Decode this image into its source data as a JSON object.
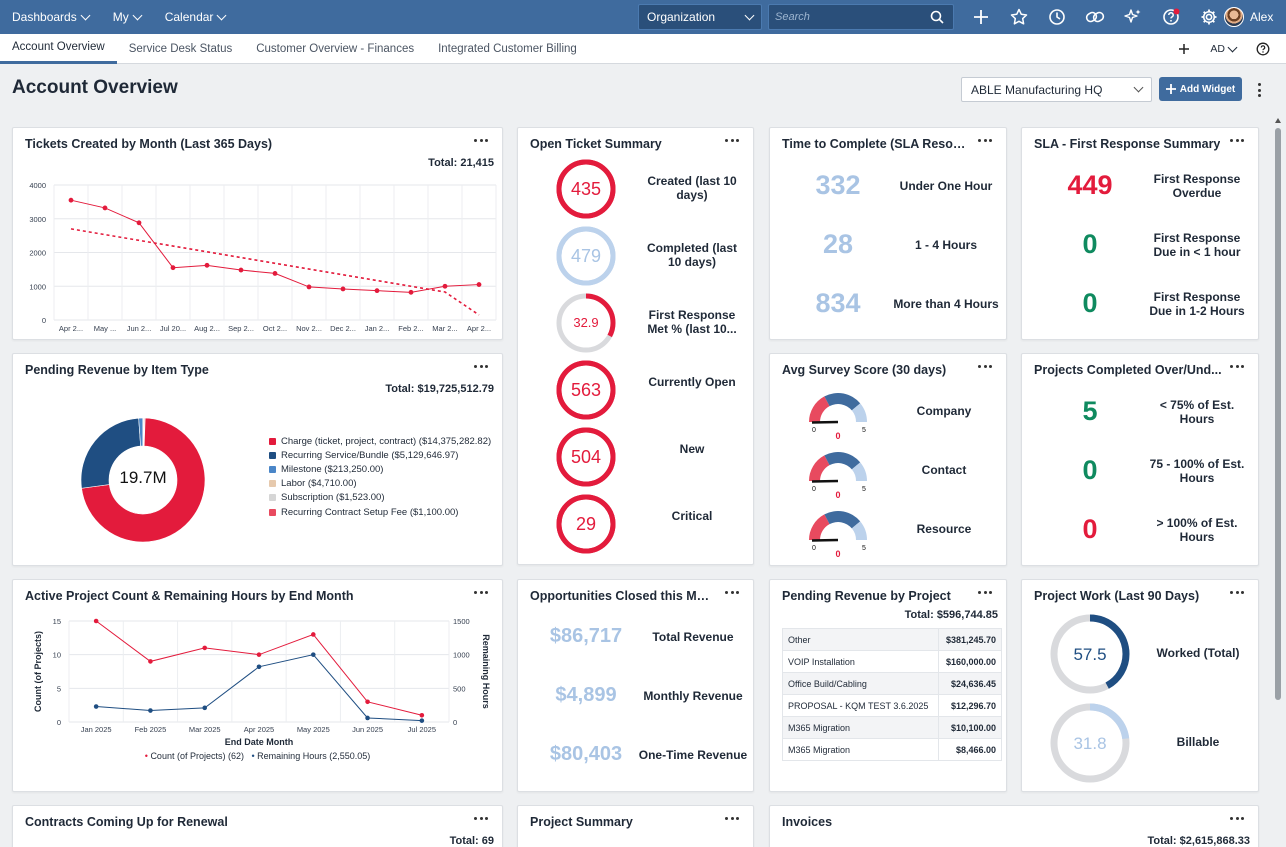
{
  "topbar": {
    "nav": [
      {
        "id": "dashboards",
        "label": "Dashboards"
      },
      {
        "id": "my",
        "label": "My"
      },
      {
        "id": "calendar",
        "label": "Calendar"
      }
    ],
    "organization": "Organization",
    "search_placeholder": "Search",
    "icons": [
      "plus-icon",
      "star-icon",
      "clock-icon",
      "link-icon",
      "sparkle-icon",
      "help-icon",
      "gear-icon"
    ],
    "user_name": "Alex"
  },
  "tabs": [
    {
      "label": "Account Overview",
      "active": true
    },
    {
      "label": "Service Desk Status",
      "active": false
    },
    {
      "label": "Customer Overview - Finances",
      "active": false
    },
    {
      "label": "Integrated Customer Billing",
      "active": false
    }
  ],
  "tabbar": {
    "user_initials": "AD"
  },
  "page": {
    "title": "Account Overview",
    "account_select": "ABLE Manufacturing HQ",
    "add_widget_label": "Add Widget"
  },
  "colors": {
    "accent": "#3f6b9e",
    "red": "#e31b3c",
    "green": "#0f8a5f",
    "light_blue": "#a9c4e4",
    "navy": "#1f4e82"
  },
  "widgets": {
    "tickets_by_month": {
      "title": "Tickets Created by Month (Last 365 Days)",
      "total": "Total: 21,415",
      "chart_data": {
        "type": "line",
        "x": [
          "Apr 2...",
          "May ...",
          "Jun 2...",
          "Jul 20...",
          "Aug 2...",
          "Sep 2...",
          "Oct 2...",
          "Nov 2...",
          "Dec 2...",
          "Jan 2...",
          "Feb 2...",
          "Mar 2...",
          "Apr 2..."
        ],
        "series": [
          {
            "values": [
              3550,
              3320,
              2880,
              1550,
              1620,
              1480,
              1380,
              980,
              920,
              870,
              820,
              1000,
              1050
            ]
          }
        ],
        "trend": [
          2700,
          2530,
          2360,
          2190,
          2020,
          1850,
          1680,
          1510,
          1340,
          1170,
          1000,
          830,
          150
        ],
        "yticks": [
          "0",
          "1000",
          "2000",
          "3000",
          "4000"
        ],
        "ylim": [
          0,
          4000
        ]
      }
    },
    "open_ticket_summary": {
      "title": "Open Ticket Summary",
      "rows": [
        {
          "value": "435",
          "label": "Created (last 10 days)",
          "style": "red",
          "fill": 1
        },
        {
          "value": "479",
          "label": "Completed (last 10 days)",
          "style": "lightblue",
          "fill": 1
        },
        {
          "value": "32.9",
          "label": "First Response Met % (last 10...",
          "style": "partial",
          "fill": 0.329
        },
        {
          "value": "563",
          "label": "Currently Open",
          "style": "red",
          "fill": 1
        },
        {
          "value": "504",
          "label": "New",
          "style": "red",
          "fill": 1
        },
        {
          "value": "29",
          "label": "Critical",
          "style": "red",
          "fill": 1
        }
      ]
    },
    "time_to_complete": {
      "title": "Time to Complete (SLA Resolu...",
      "rows": [
        {
          "value": "332",
          "label": "Under One Hour"
        },
        {
          "value": "28",
          "label": "1 - 4 Hours"
        },
        {
          "value": "834",
          "label": "More than 4 Hours"
        }
      ]
    },
    "sla_first_response": {
      "title": "SLA - First Response Summary",
      "rows": [
        {
          "value": "449",
          "label": "First Response Overdue",
          "color": "#e31b3c"
        },
        {
          "value": "0",
          "label": "First Response Due in < 1 hour",
          "color": "#0f8a5f"
        },
        {
          "value": "0",
          "label": "First Response Due in 1-2 Hours",
          "color": "#0f8a5f"
        }
      ]
    },
    "pending_revenue_item": {
      "title": "Pending Revenue by Item Type",
      "total": "Total: $19,725,512.79",
      "center": "19.7M",
      "chart_data": {
        "type": "pie",
        "categories": [
          "Charge (ticket, project, contract) ($14,375,282.82)",
          "Recurring Service/Bundle ($5,129,646.97)",
          "Milestone ($213,250.00)",
          "Labor ($4,710.00)",
          "Subscription ($1,523.00)",
          "Recurring Contract Setup Fee ($1,100.00)"
        ],
        "values": [
          14375282.82,
          5129646.97,
          213250.0,
          4710.0,
          1523.0,
          1100.0
        ],
        "colors": [
          "#e31b3c",
          "#1f4e82",
          "#4a86c8",
          "#e6c9ad",
          "#d6d6d6",
          "#e84a5f"
        ]
      }
    },
    "avg_survey": {
      "title": "Avg Survey Score (30 days)",
      "min": "0",
      "max": "5",
      "rows": [
        {
          "label": "Company",
          "value": "0",
          "score": 0
        },
        {
          "label": "Contact",
          "value": "0",
          "score": 0
        },
        {
          "label": "Resource",
          "value": "0",
          "score": 0
        }
      ]
    },
    "projects_completed": {
      "title": "Projects Completed Over/Und...",
      "rows": [
        {
          "value": "5",
          "label": "< 75% of Est. Hours",
          "color": "#0f8a5f"
        },
        {
          "value": "0",
          "label": "75 - 100% of Est. Hours",
          "color": "#0f8a5f"
        },
        {
          "value": "0",
          "label": "> 100% of Est. Hours",
          "color": "#e31b3c"
        }
      ]
    },
    "active_projects": {
      "title": "Active Project Count & Remaining Hours by End Month",
      "chart_data": {
        "type": "line",
        "x": [
          "Jan 2025",
          "Feb 2025",
          "Mar 2025",
          "Apr 2025",
          "May 2025",
          "Jun 2025",
          "Jul 2025"
        ],
        "series": [
          {
            "name": "Count (of Projects) (62)",
            "axis": "left",
            "color": "#e31b3c",
            "values": [
              15,
              9,
              11,
              10,
              13,
              3,
              1
            ]
          },
          {
            "name": "Remaining Hours (2,550.05)",
            "axis": "right",
            "color": "#1f4e82",
            "values": [
              230,
              170,
              210,
              820,
              1000,
              60,
              20
            ]
          }
        ],
        "xlabel": "End Date Month",
        "ylabel": "Count (of Projects)",
        "y2label": "Remaining Hours",
        "yticks": [
          "0",
          "5",
          "10",
          "15"
        ],
        "y2ticks": [
          "0",
          "500",
          "1000",
          "1500"
        ],
        "ylim": [
          0,
          15
        ],
        "y2lim": [
          0,
          1500
        ]
      }
    },
    "opportunities": {
      "title": "Opportunities Closed this Mon...",
      "rows": [
        {
          "value": "$86,717",
          "label": "Total Revenue"
        },
        {
          "value": "$4,899",
          "label": "Monthly Revenue"
        },
        {
          "value": "$80,403",
          "label": "One-Time Revenue"
        }
      ]
    },
    "pending_revenue_project": {
      "title": "Pending Revenue by Project",
      "total": "Total: $596,744.85",
      "rows": [
        {
          "name": "Other",
          "value": "$381,245.70"
        },
        {
          "name": "VOIP Installation",
          "value": "$160,000.00"
        },
        {
          "name": "Office Build/Cabling",
          "value": "$24,636.45"
        },
        {
          "name": "PROPOSAL - KQM TEST 3.6.2025",
          "value": "$12,296.70"
        },
        {
          "name": "M365 Migration",
          "value": "$10,100.00"
        },
        {
          "name": "M365 Migration",
          "value": "$8,466.00"
        }
      ]
    },
    "project_work": {
      "title": "Project Work (Last 90 Days)",
      "rows": [
        {
          "value": "57.5",
          "label": "Worked (Total)",
          "fill": 0.42
        },
        {
          "value": "31.8",
          "label": "Billable",
          "fill": 0.23
        }
      ]
    },
    "contracts": {
      "title": "Contracts Coming Up for Renewal",
      "total": "Total: 69"
    },
    "project_summary": {
      "title": "Project Summary"
    },
    "invoices": {
      "title": "Invoices",
      "total": "Total: $2,615,868.33"
    }
  }
}
